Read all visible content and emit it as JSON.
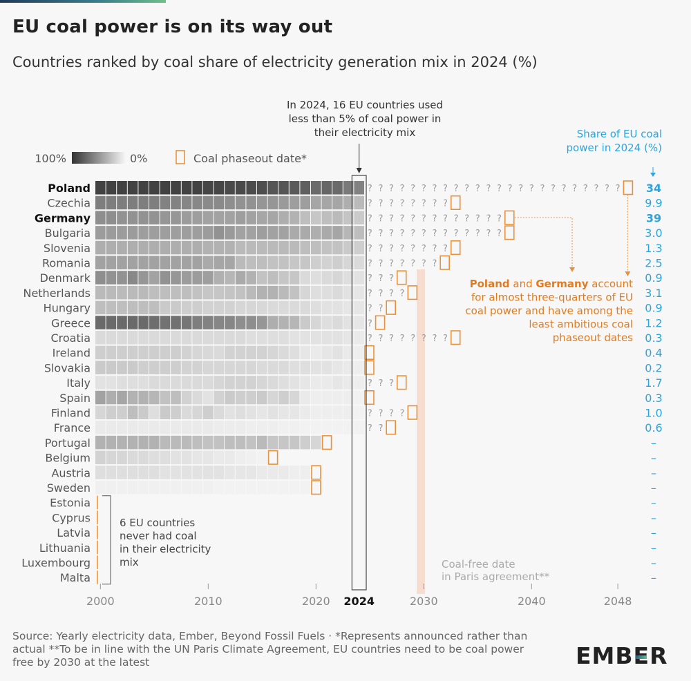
{
  "title": "EU coal power is on its way out",
  "subtitle": "Countries ranked by coal share of electricity generation mix in 2024 (%)",
  "legend": {
    "scale_high": "100%",
    "scale_low": "0%",
    "phaseout_label": "Coal phaseout date*"
  },
  "callout_2024": [
    "In 2024, 16 EU countries used",
    "less than 5% of coal power in",
    "their electricity mix"
  ],
  "share_header": [
    "Share of EU coal",
    "power in 2024 (%)"
  ],
  "never_had_coal_note": [
    "6 EU countries",
    "never had coal",
    "in their electricity",
    "mix"
  ],
  "paris_note": [
    "Coal-free date",
    "in Paris agreement**"
  ],
  "pg_note": [
    [
      {
        "t": "Poland",
        "b": true
      },
      {
        "t": " and ",
        "b": false
      },
      {
        "t": "Germany",
        "b": true
      },
      {
        "t": " account",
        "b": false
      }
    ],
    [
      {
        "t": "for almost three-quarters of EU",
        "b": false
      }
    ],
    [
      {
        "t": "coal power and have among the",
        "b": false
      }
    ],
    [
      {
        "t": "least ambitious coal",
        "b": false
      }
    ],
    [
      {
        "t": "phaseout dates",
        "b": false
      }
    ]
  ],
  "gap_glyph": "?",
  "source": "Source: Yearly electricity data, Ember, Beyond Fossil Fuels · *Represents announced rather than actual **To be in line with the UN Paris Climate Agreement, EU countries need to be coal power free by 2030 at the latest",
  "logo": {
    "part1": "EMB",
    "part2": "E",
    "part3": "R"
  },
  "colors": {
    "accent_orange": "#e8913a",
    "text_orange": "#e07b20",
    "share_blue": "#2ea4dc",
    "paris_band": "#f7ddd0",
    "cell_dark": "#3a3a3a",
    "cell_light": "#f2f2f2"
  },
  "chart_data": {
    "type": "heatmap",
    "title": "EU coal power is on its way out",
    "subtitle": "Countries ranked by coal share of electricity generation mix in 2024 (%)",
    "x_ticks": [
      "2000",
      "2010",
      "2020",
      "2024",
      "2030",
      "2040",
      "2048"
    ],
    "year_range": [
      2000,
      2024
    ],
    "highlight_year": "2024",
    "paris_year": 2030,
    "countries": [
      {
        "name": "Poland",
        "bold": true,
        "start": 2000,
        "levels": [
          0.9,
          0.9,
          0.9,
          0.9,
          0.9,
          0.9,
          0.9,
          0.9,
          0.9,
          0.9,
          0.88,
          0.88,
          0.86,
          0.86,
          0.85,
          0.84,
          0.8,
          0.8,
          0.78,
          0.75,
          0.7,
          0.72,
          0.7,
          0.62,
          0.58
        ],
        "phaseout": 2049,
        "share": "34"
      },
      {
        "name": "Czechia",
        "bold": false,
        "start": 2000,
        "levels": [
          0.6,
          0.6,
          0.6,
          0.6,
          0.6,
          0.6,
          0.58,
          0.58,
          0.56,
          0.55,
          0.54,
          0.54,
          0.52,
          0.5,
          0.5,
          0.48,
          0.48,
          0.46,
          0.44,
          0.44,
          0.4,
          0.4,
          0.4,
          0.36,
          0.3
        ],
        "phaseout": 2033,
        "share": "9.9"
      },
      {
        "name": "Germany",
        "bold": true,
        "start": 2000,
        "levels": [
          0.52,
          0.52,
          0.5,
          0.5,
          0.5,
          0.5,
          0.48,
          0.48,
          0.45,
          0.44,
          0.42,
          0.42,
          0.42,
          0.44,
          0.42,
          0.4,
          0.4,
          0.36,
          0.34,
          0.28,
          0.24,
          0.28,
          0.3,
          0.25,
          0.22
        ],
        "phaseout": 2038,
        "share": "39"
      },
      {
        "name": "Bulgaria",
        "bold": false,
        "start": 2000,
        "levels": [
          0.45,
          0.45,
          0.45,
          0.45,
          0.44,
          0.44,
          0.44,
          0.44,
          0.44,
          0.44,
          0.45,
          0.5,
          0.46,
          0.42,
          0.42,
          0.44,
          0.42,
          0.42,
          0.38,
          0.38,
          0.36,
          0.38,
          0.4,
          0.32,
          0.28
        ],
        "phaseout": 2038,
        "share": "3.0"
      },
      {
        "name": "Slovenia",
        "bold": false,
        "start": 2000,
        "levels": [
          0.36,
          0.36,
          0.36,
          0.36,
          0.36,
          0.36,
          0.36,
          0.36,
          0.36,
          0.36,
          0.34,
          0.34,
          0.34,
          0.3,
          0.3,
          0.3,
          0.3,
          0.3,
          0.3,
          0.28,
          0.28,
          0.26,
          0.26,
          0.22,
          0.2
        ],
        "phaseout": 2033,
        "share": "1.3"
      },
      {
        "name": "Romania",
        "bold": false,
        "start": 2000,
        "levels": [
          0.42,
          0.42,
          0.42,
          0.42,
          0.42,
          0.42,
          0.42,
          0.42,
          0.42,
          0.42,
          0.38,
          0.4,
          0.4,
          0.3,
          0.28,
          0.28,
          0.26,
          0.26,
          0.24,
          0.24,
          0.2,
          0.18,
          0.2,
          0.16,
          0.14
        ],
        "phaseout": 2032,
        "share": "2.5"
      },
      {
        "name": "Denmark",
        "bold": false,
        "start": 2000,
        "levels": [
          0.52,
          0.5,
          0.5,
          0.55,
          0.48,
          0.42,
          0.5,
          0.48,
          0.45,
          0.45,
          0.44,
          0.35,
          0.32,
          0.38,
          0.34,
          0.26,
          0.28,
          0.24,
          0.24,
          0.14,
          0.12,
          0.14,
          0.16,
          0.12,
          0.1
        ],
        "phaseout": 2028,
        "share": "0.9"
      },
      {
        "name": "Netherlands",
        "bold": false,
        "start": 2000,
        "levels": [
          0.3,
          0.3,
          0.3,
          0.3,
          0.3,
          0.28,
          0.28,
          0.28,
          0.28,
          0.26,
          0.24,
          0.24,
          0.25,
          0.26,
          0.3,
          0.34,
          0.34,
          0.3,
          0.26,
          0.16,
          0.12,
          0.12,
          0.14,
          0.1,
          0.08
        ],
        "phaseout": 2029,
        "share": "3.1"
      },
      {
        "name": "Hungary",
        "bold": false,
        "start": 2000,
        "levels": [
          0.28,
          0.28,
          0.28,
          0.28,
          0.28,
          0.28,
          0.22,
          0.22,
          0.2,
          0.2,
          0.18,
          0.18,
          0.18,
          0.16,
          0.16,
          0.15,
          0.14,
          0.14,
          0.14,
          0.14,
          0.12,
          0.1,
          0.1,
          0.08,
          0.08
        ],
        "phaseout": 2027,
        "share": "0.9"
      },
      {
        "name": "Greece",
        "bold": false,
        "start": 2000,
        "levels": [
          0.7,
          0.7,
          0.7,
          0.7,
          0.7,
          0.68,
          0.66,
          0.66,
          0.64,
          0.6,
          0.58,
          0.56,
          0.56,
          0.52,
          0.52,
          0.48,
          0.36,
          0.34,
          0.32,
          0.22,
          0.16,
          0.12,
          0.14,
          0.1,
          0.08
        ],
        "phaseout": 2026,
        "share": "1.2"
      },
      {
        "name": "Croatia",
        "bold": false,
        "start": 2000,
        "levels": [
          0.14,
          0.14,
          0.14,
          0.14,
          0.14,
          0.14,
          0.14,
          0.14,
          0.14,
          0.14,
          0.14,
          0.14,
          0.14,
          0.14,
          0.12,
          0.12,
          0.12,
          0.12,
          0.1,
          0.1,
          0.1,
          0.1,
          0.1,
          0.08,
          0.06
        ],
        "phaseout": 2033,
        "share": "0.3"
      },
      {
        "name": "Ireland",
        "bold": false,
        "start": 2000,
        "levels": [
          0.2,
          0.2,
          0.2,
          0.2,
          0.2,
          0.2,
          0.2,
          0.2,
          0.18,
          0.16,
          0.15,
          0.14,
          0.18,
          0.18,
          0.18,
          0.18,
          0.16,
          0.14,
          0.12,
          0.08,
          0.06,
          0.08,
          0.1,
          0.06,
          0.04
        ],
        "phaseout": 2025,
        "share": "0.4"
      },
      {
        "name": "Slovakia",
        "bold": false,
        "start": 2000,
        "levels": [
          0.22,
          0.22,
          0.22,
          0.22,
          0.2,
          0.2,
          0.2,
          0.2,
          0.18,
          0.18,
          0.16,
          0.16,
          0.16,
          0.16,
          0.16,
          0.14,
          0.14,
          0.14,
          0.12,
          0.12,
          0.1,
          0.1,
          0.08,
          0.06,
          0.04
        ],
        "phaseout": 2025,
        "share": "0.2"
      },
      {
        "name": "Italy",
        "bold": false,
        "start": 2000,
        "levels": [
          0.1,
          0.1,
          0.12,
          0.12,
          0.12,
          0.14,
          0.14,
          0.14,
          0.14,
          0.14,
          0.14,
          0.16,
          0.18,
          0.18,
          0.18,
          0.16,
          0.14,
          0.12,
          0.1,
          0.08,
          0.06,
          0.06,
          0.08,
          0.06,
          0.04
        ],
        "phaseout": 2028,
        "share": "1.7"
      },
      {
        "name": "Spain",
        "bold": false,
        "start": 2000,
        "levels": [
          0.42,
          0.36,
          0.4,
          0.34,
          0.34,
          0.32,
          0.26,
          0.28,
          0.18,
          0.14,
          0.1,
          0.18,
          0.22,
          0.2,
          0.2,
          0.22,
          0.16,
          0.2,
          0.16,
          0.06,
          0.04,
          0.04,
          0.04,
          0.04,
          0.02
        ],
        "phaseout": 2025,
        "share": "0.3"
      },
      {
        "name": "Finland",
        "bold": false,
        "start": 2000,
        "levels": [
          0.16,
          0.2,
          0.2,
          0.28,
          0.22,
          0.12,
          0.22,
          0.2,
          0.14,
          0.16,
          0.2,
          0.14,
          0.1,
          0.12,
          0.1,
          0.08,
          0.1,
          0.08,
          0.08,
          0.06,
          0.04,
          0.04,
          0.04,
          0.04,
          0.02
        ],
        "phaseout": 2029,
        "share": "1.0"
      },
      {
        "name": "France",
        "bold": false,
        "start": 2000,
        "levels": [
          0.06,
          0.06,
          0.06,
          0.06,
          0.06,
          0.06,
          0.06,
          0.06,
          0.06,
          0.06,
          0.06,
          0.05,
          0.05,
          0.05,
          0.04,
          0.04,
          0.04,
          0.03,
          0.03,
          0.02,
          0.02,
          0.02,
          0.02,
          0.02,
          0.02
        ],
        "phaseout": 2027,
        "share": "0.6"
      },
      {
        "name": "Portugal",
        "bold": false,
        "start": 2000,
        "levels": [
          0.34,
          0.34,
          0.34,
          0.34,
          0.34,
          0.34,
          0.3,
          0.3,
          0.3,
          0.28,
          0.26,
          0.26,
          0.28,
          0.28,
          0.26,
          0.3,
          0.24,
          0.24,
          0.24,
          0.2,
          0.16
        ],
        "phaseout": 2021,
        "share": "–"
      },
      {
        "name": "Belgium",
        "bold": false,
        "start": 2000,
        "levels": [
          0.18,
          0.16,
          0.16,
          0.14,
          0.14,
          0.12,
          0.12,
          0.1,
          0.1,
          0.08,
          0.08,
          0.06,
          0.06,
          0.04,
          0.03,
          0.02
        ],
        "phaseout": 2016,
        "share": "–"
      },
      {
        "name": "Austria",
        "bold": false,
        "start": 2000,
        "levels": [
          0.12,
          0.12,
          0.12,
          0.12,
          0.12,
          0.12,
          0.1,
          0.1,
          0.1,
          0.1,
          0.1,
          0.1,
          0.08,
          0.08,
          0.08,
          0.06,
          0.06,
          0.06,
          0.04,
          0.04
        ],
        "phaseout": 2020,
        "share": "–"
      },
      {
        "name": "Sweden",
        "bold": false,
        "start": 2000,
        "levels": [
          0.03,
          0.03,
          0.03,
          0.03,
          0.03,
          0.03,
          0.03,
          0.03,
          0.03,
          0.03,
          0.03,
          0.02,
          0.02,
          0.02,
          0.02,
          0.02,
          0.02,
          0.02,
          0.02,
          0.02
        ],
        "phaseout": 2020,
        "share": "–"
      },
      {
        "name": "Estonia",
        "bold": false,
        "start": null,
        "levels": [],
        "phaseout": null,
        "share": "–"
      },
      {
        "name": "Cyprus",
        "bold": false,
        "start": null,
        "levels": [],
        "phaseout": null,
        "share": "–"
      },
      {
        "name": "Latvia",
        "bold": false,
        "start": null,
        "levels": [],
        "phaseout": null,
        "share": "–"
      },
      {
        "name": "Lithuania",
        "bold": false,
        "start": null,
        "levels": [],
        "phaseout": null,
        "share": "–"
      },
      {
        "name": "Luxembourg",
        "bold": false,
        "start": null,
        "levels": [],
        "phaseout": null,
        "share": "–"
      },
      {
        "name": "Malta",
        "bold": false,
        "start": null,
        "levels": [],
        "phaseout": null,
        "share": "–"
      }
    ]
  }
}
